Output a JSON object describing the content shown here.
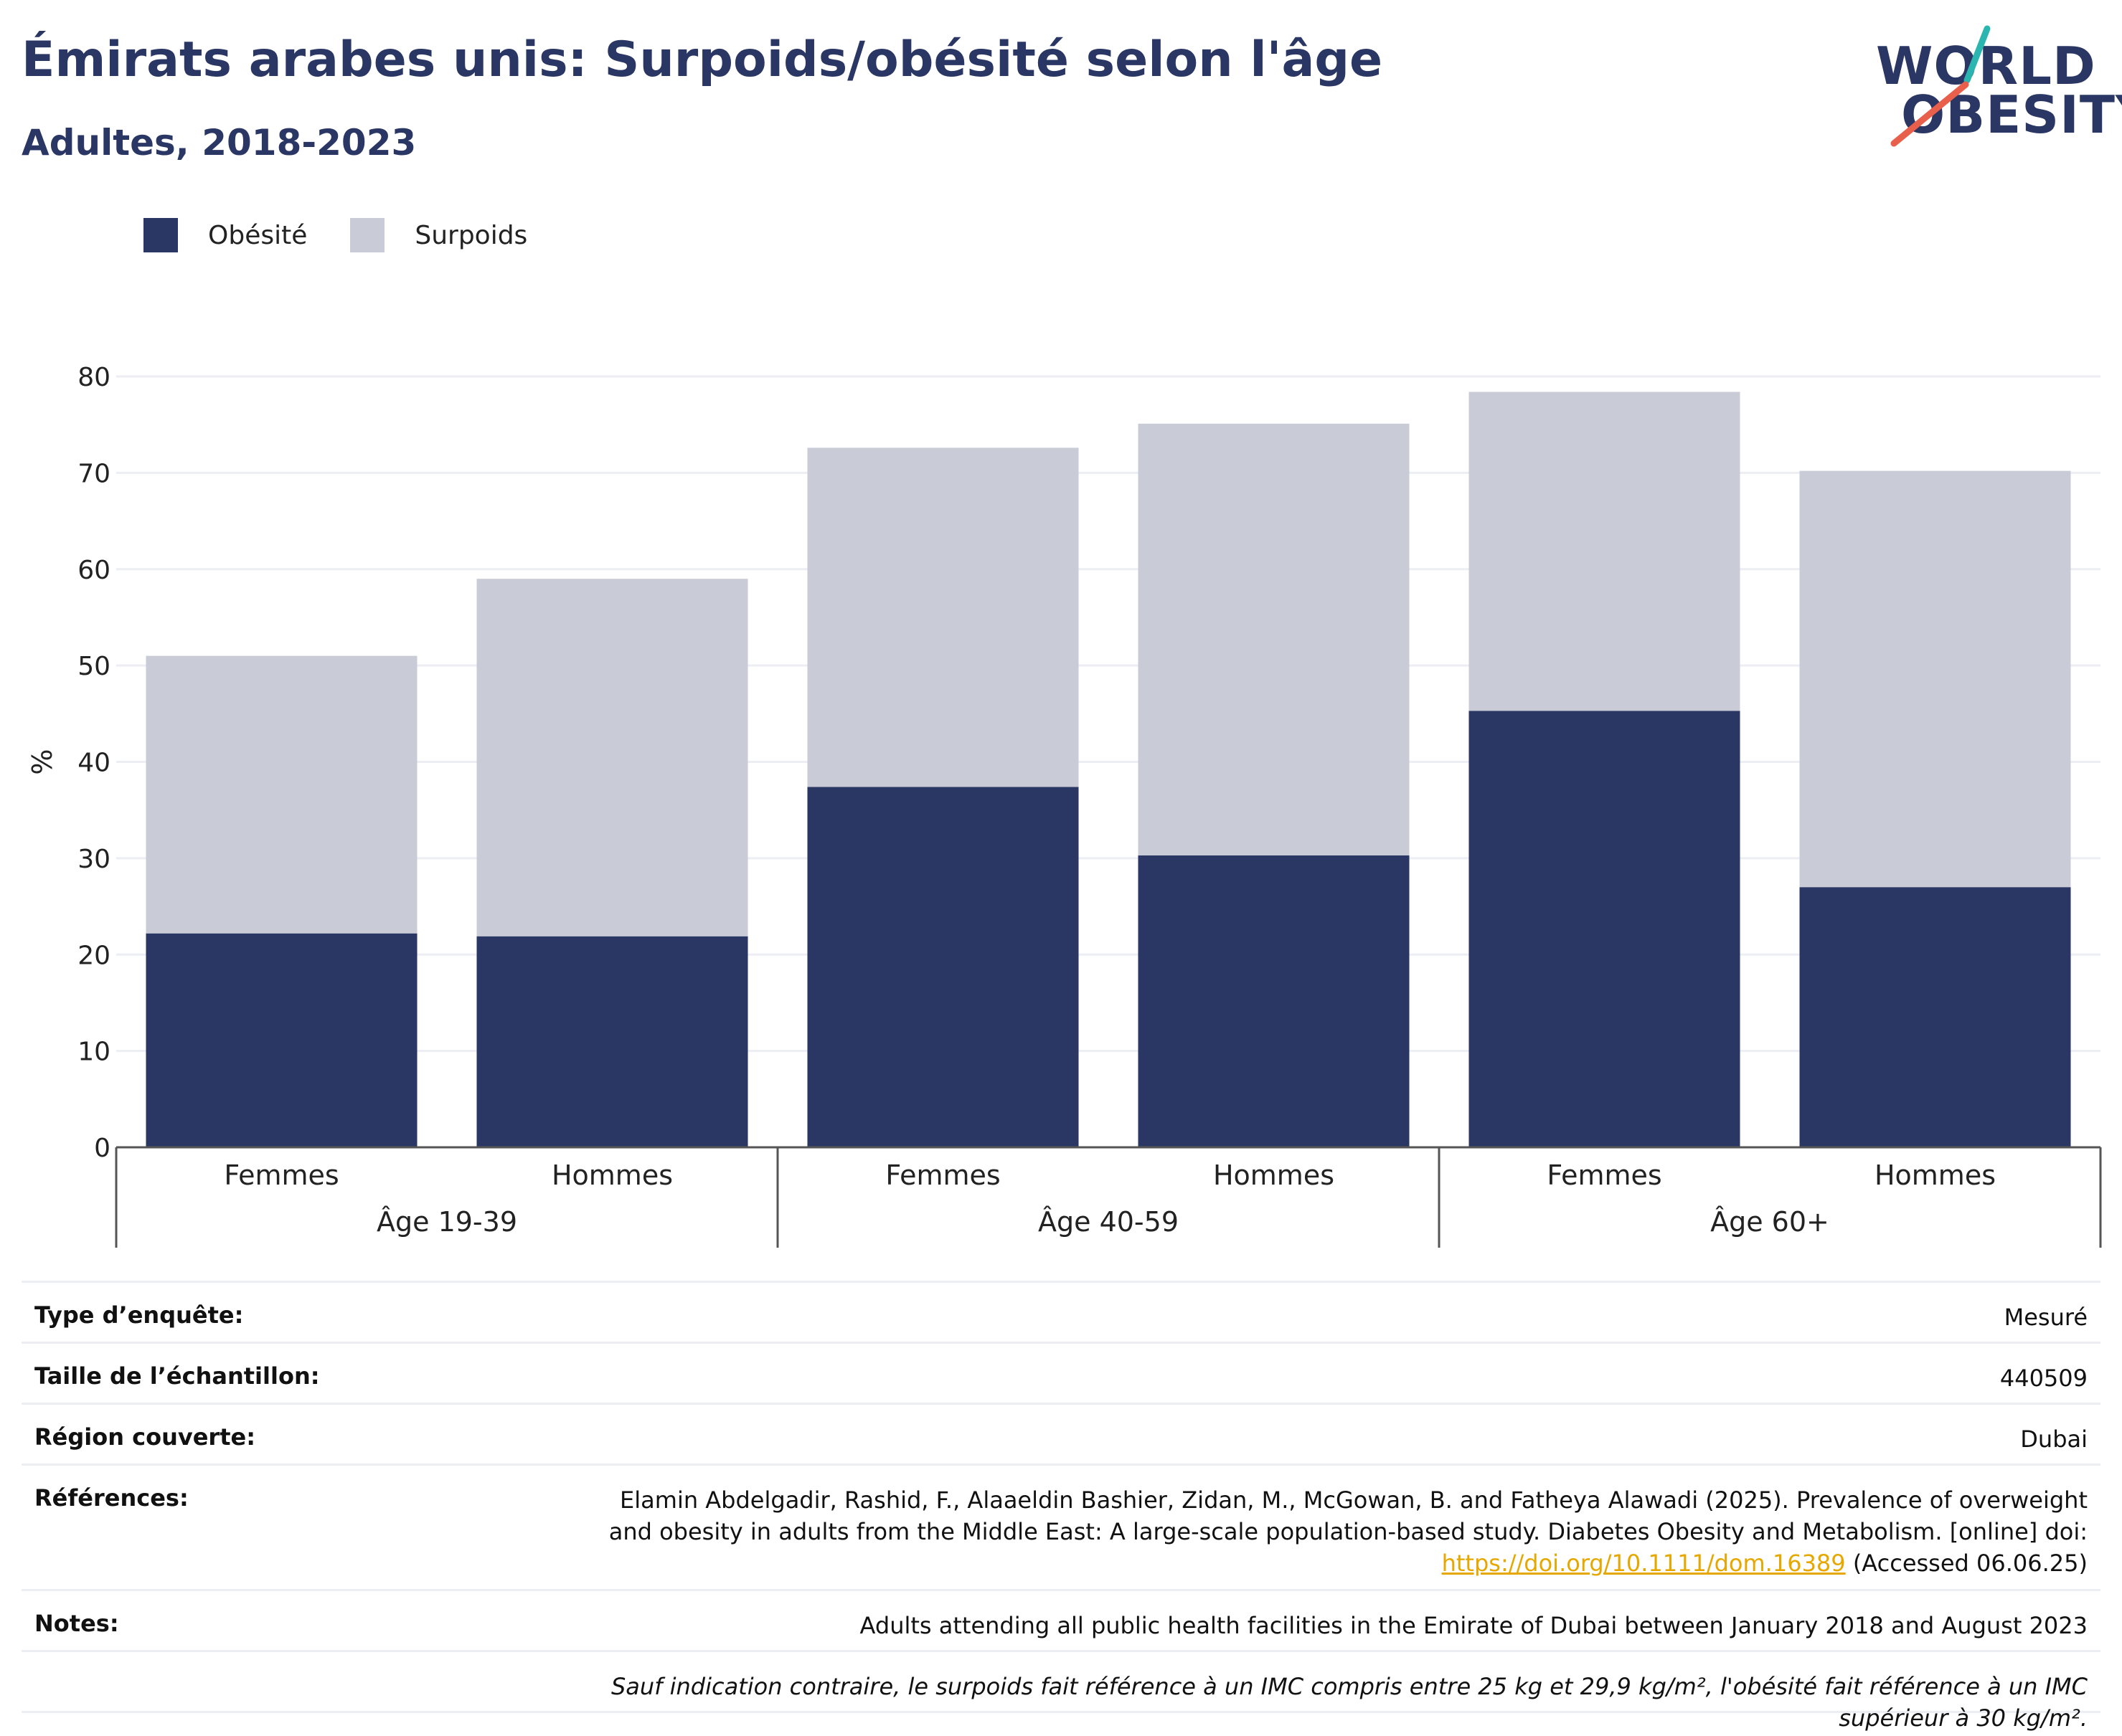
{
  "header": {
    "title": "Émirats arabes unis: Surpoids/obésité selon l'âge",
    "subtitle": "Adultes, 2018-2023"
  },
  "logo": {
    "line1": "WORLD",
    "line2": "OBESITY",
    "slash_colors": [
      "#2bb5b0",
      "#e8604c"
    ]
  },
  "colors": {
    "obesity": "#2a3663",
    "overweight": "#c9cbd7",
    "grid": "#eceef3",
    "axis": "#555555"
  },
  "chart_data": {
    "type": "bar",
    "stacked": true,
    "ylabel": "%",
    "ylim": [
      0,
      80
    ],
    "yticks": [
      0,
      10,
      20,
      30,
      40,
      50,
      60,
      70,
      80
    ],
    "grid": true,
    "legend_position": "top-left",
    "groups": [
      {
        "label": "Âge 19-39",
        "categories": [
          "Femmes",
          "Hommes"
        ]
      },
      {
        "label": "Âge 40-59",
        "categories": [
          "Femmes",
          "Hommes"
        ]
      },
      {
        "label": "Âge 60+",
        "categories": [
          "Femmes",
          "Hommes"
        ]
      }
    ],
    "series": [
      {
        "name": "Obésité",
        "color": "#2a3663",
        "values": [
          22.2,
          21.9,
          37.4,
          30.3,
          45.3,
          27.0
        ]
      },
      {
        "name": "Surpoids",
        "color": "#c9cbd7",
        "values": [
          28.8,
          37.1,
          35.2,
          44.8,
          33.1,
          43.2
        ]
      }
    ]
  },
  "info": {
    "survey_type": {
      "label": "Type d’enquête:",
      "value": "Mesuré"
    },
    "sample_size": {
      "label": "Taille de l’échantillon:",
      "value": "440509"
    },
    "region": {
      "label": "Région couverte:",
      "value": "Dubai"
    },
    "references": {
      "label": "Références:",
      "text": "Elamin Abdelgadir, Rashid, F., Alaaeldin Bashier, Zidan, M., McGowan, B. and Fatheya Alawadi (2025). Prevalence of overweight and obesity in adults from the Middle East: A large-scale population-based study. Diabetes Obesity and Metabolism. [online] doi:",
      "link": "https://doi.org/10.1111/dom.16389",
      "suffix": " (Accessed 06.06.25)"
    },
    "notes": {
      "label": "Notes:",
      "value": "Adults attending all public health facilities in the Emirate of Dubai between January 2018 and August 2023"
    },
    "footnote": "Sauf indication contraire, le surpoids fait référence à un IMC compris entre 25 kg et 29,9 kg/m², l'obésité fait référence à un IMC supérieur à 30 kg/m²."
  }
}
